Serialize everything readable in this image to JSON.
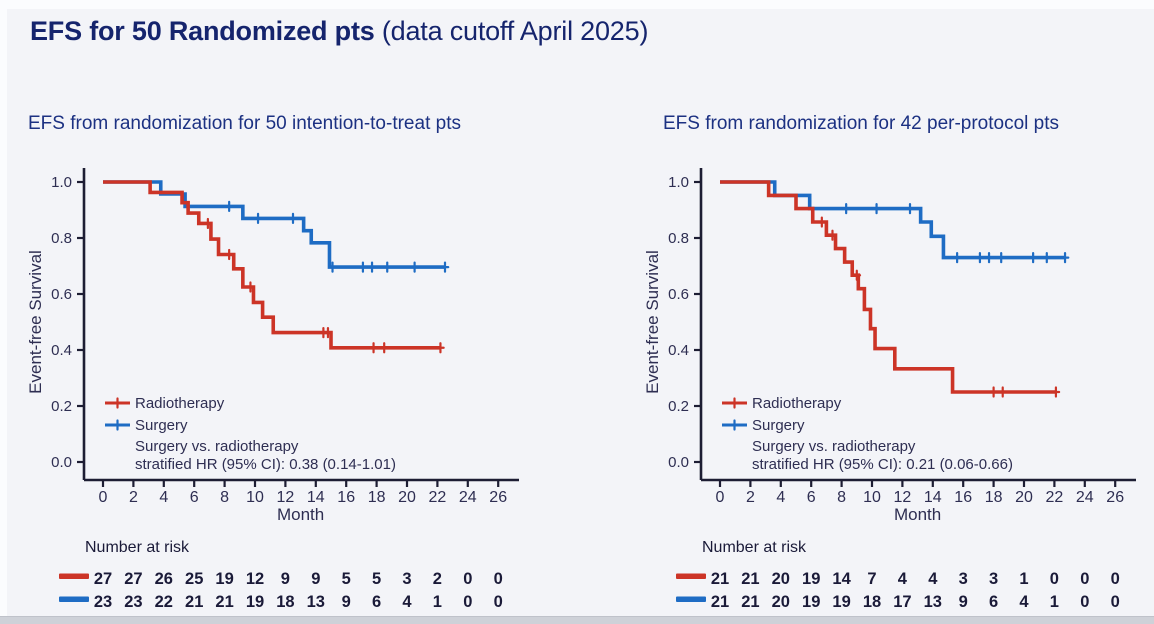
{
  "slide": {
    "title_bold": "EFS for 50 Randomized pts ",
    "title_normal": "(data cutoff April 2025)"
  },
  "colors": {
    "radiotherapy": "#cc3427",
    "surgery": "#1e6cc4",
    "title_text": "#15246d",
    "subtitle_text": "#1c3182",
    "axis_line": "#1d1d33",
    "axis_text": "#2e2e52",
    "risk_text": "#1a1a38",
    "background": "#f3f4f8",
    "bottom_bar": "#ced1d8"
  },
  "chart_data": [
    {
      "type": "line",
      "subtype": "kaplan-meier-step",
      "title": "EFS from randomization for 50 intention-to-treat pts",
      "xlabel": "Month",
      "ylabel": "Event-free Survival",
      "xlim": [
        0,
        26
      ],
      "xticks": [
        0,
        2,
        4,
        6,
        8,
        10,
        12,
        14,
        16,
        18,
        20,
        22,
        24,
        26
      ],
      "ylim": [
        0.0,
        1.0
      ],
      "yticks": [
        1.0,
        0.8,
        0.6,
        0.4,
        0.2,
        0.0
      ],
      "grid": false,
      "legend_position": "lower-left-inside",
      "legend_note": [
        "Surgery vs. radiotherapy",
        "stratified HR (95% CI): 0.38 (0.14-1.01)"
      ],
      "risk_table_header": "Number at risk",
      "series": [
        {
          "name": "Radiotherapy",
          "color": "#cc3427",
          "steps": [
            [
              0,
              1.0
            ],
            [
              3.1,
              0.963
            ],
            [
              5.2,
              0.926
            ],
            [
              5.6,
              0.889
            ],
            [
              6.3,
              0.852
            ],
            [
              7.1,
              0.796
            ],
            [
              7.6,
              0.741
            ],
            [
              8.6,
              0.69
            ],
            [
              9.2,
              0.625
            ],
            [
              9.9,
              0.57
            ],
            [
              10.5,
              0.517
            ],
            [
              11.2,
              0.462
            ],
            [
              15.0,
              0.408
            ]
          ],
          "end_time": 22.2,
          "censor_marks": [
            [
              6.9,
              0.852
            ],
            [
              8.3,
              0.741
            ],
            [
              9.7,
              0.625
            ],
            [
              14.5,
              0.462
            ],
            [
              14.8,
              0.462
            ],
            [
              17.8,
              0.408
            ],
            [
              18.5,
              0.408
            ],
            [
              22.2,
              0.408
            ]
          ],
          "number_at_risk": [
            27,
            27,
            26,
            25,
            19,
            12,
            9,
            9,
            5,
            5,
            3,
            2,
            0,
            0
          ]
        },
        {
          "name": "Surgery",
          "color": "#1e6cc4",
          "steps": [
            [
              0,
              1.0
            ],
            [
              3.8,
              0.957
            ],
            [
              5.4,
              0.913
            ],
            [
              9.2,
              0.87
            ],
            [
              13.2,
              0.826
            ],
            [
              13.7,
              0.783
            ],
            [
              14.9,
              0.696
            ]
          ],
          "end_time": 22.5,
          "censor_marks": [
            [
              8.3,
              0.913
            ],
            [
              10.2,
              0.87
            ],
            [
              12.5,
              0.87
            ],
            [
              15.1,
              0.696
            ],
            [
              17.1,
              0.696
            ],
            [
              17.7,
              0.696
            ],
            [
              18.7,
              0.696
            ],
            [
              20.5,
              0.696
            ],
            [
              22.5,
              0.696
            ]
          ],
          "number_at_risk": [
            23,
            23,
            22,
            21,
            21,
            19,
            18,
            13,
            9,
            6,
            4,
            1,
            0,
            0
          ]
        }
      ]
    },
    {
      "type": "line",
      "subtype": "kaplan-meier-step",
      "title": "EFS from randomization for 42 per-protocol pts",
      "xlabel": "Month",
      "ylabel": "Event-free Survival",
      "xlim": [
        0,
        26
      ],
      "xticks": [
        0,
        2,
        4,
        6,
        8,
        10,
        12,
        14,
        16,
        18,
        20,
        22,
        24,
        26
      ],
      "ylim": [
        0.0,
        1.0
      ],
      "yticks": [
        1.0,
        0.8,
        0.6,
        0.4,
        0.2,
        0.0
      ],
      "grid": false,
      "legend_position": "lower-left-inside",
      "legend_note": [
        "Surgery vs. radiotherapy",
        "stratified HR (95% CI): 0.21 (0.06-0.66)"
      ],
      "risk_table_header": "Number at risk",
      "series": [
        {
          "name": "Radiotherapy",
          "color": "#cc3427",
          "steps": [
            [
              0,
              1.0
            ],
            [
              3.2,
              0.952
            ],
            [
              5.0,
              0.905
            ],
            [
              6.1,
              0.857
            ],
            [
              7.0,
              0.81
            ],
            [
              7.6,
              0.762
            ],
            [
              8.2,
              0.714
            ],
            [
              8.7,
              0.667
            ],
            [
              9.1,
              0.619
            ],
            [
              9.5,
              0.545
            ],
            [
              9.9,
              0.476
            ],
            [
              10.2,
              0.405
            ],
            [
              11.5,
              0.333
            ],
            [
              15.3,
              0.25
            ]
          ],
          "end_time": 22.1,
          "censor_marks": [
            [
              6.7,
              0.857
            ],
            [
              7.4,
              0.81
            ],
            [
              9.0,
              0.667
            ],
            [
              18.0,
              0.25
            ],
            [
              18.6,
              0.25
            ],
            [
              22.1,
              0.25
            ]
          ],
          "number_at_risk": [
            21,
            21,
            20,
            19,
            14,
            7,
            4,
            4,
            3,
            3,
            1,
            0,
            0,
            0
          ]
        },
        {
          "name": "Surgery",
          "color": "#1e6cc4",
          "steps": [
            [
              0,
              1.0
            ],
            [
              3.6,
              0.952
            ],
            [
              5.9,
              0.905
            ],
            [
              13.2,
              0.857
            ],
            [
              13.9,
              0.806
            ],
            [
              14.7,
              0.73
            ]
          ],
          "end_time": 22.7,
          "censor_marks": [
            [
              8.3,
              0.905
            ],
            [
              10.3,
              0.905
            ],
            [
              12.5,
              0.905
            ],
            [
              15.6,
              0.73
            ],
            [
              17.1,
              0.73
            ],
            [
              17.7,
              0.73
            ],
            [
              18.5,
              0.73
            ],
            [
              20.6,
              0.73
            ],
            [
              21.5,
              0.73
            ],
            [
              22.7,
              0.73
            ]
          ],
          "number_at_risk": [
            21,
            21,
            20,
            19,
            19,
            18,
            17,
            13,
            9,
            6,
            4,
            1,
            0,
            0
          ]
        }
      ]
    }
  ]
}
